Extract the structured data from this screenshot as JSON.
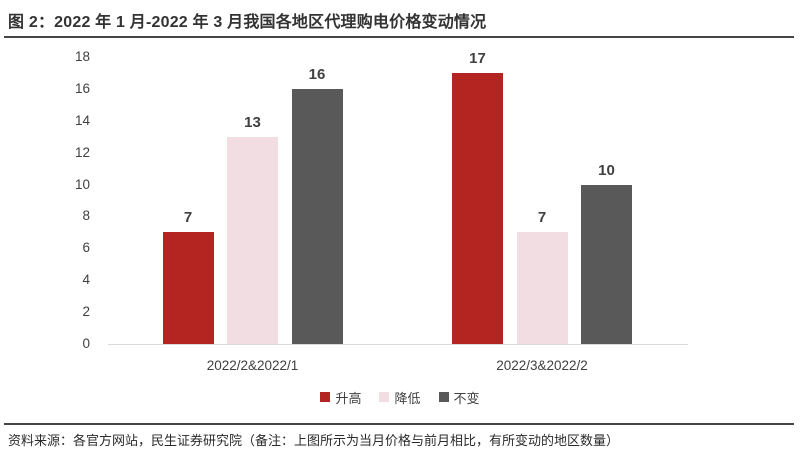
{
  "header": {
    "title": "图 2：2022 年 1 月-2022 年 3 月我国各地区代理购电价格变动情况"
  },
  "footer": {
    "source": "资料来源：各官方网站，民生证券研究院（备注：上图所示为当月价格与前月相比，有所变动的地区数量）"
  },
  "colors": {
    "increase": "#b42420",
    "decrease": "#f2dde2",
    "unchanged": "#595959",
    "axis": "#d9d9d9",
    "text": "#404040"
  },
  "chart_data": {
    "type": "bar",
    "title": "",
    "xlabel": "",
    "ylabel": "",
    "categories": [
      "2022/2&2022/1",
      "2022/3&2022/2"
    ],
    "series": [
      {
        "key": "increase",
        "name": "升高",
        "color": "#b42420",
        "values": [
          7,
          17
        ]
      },
      {
        "key": "decrease",
        "name": "降低",
        "color": "#f2dde2",
        "values": [
          13,
          7
        ]
      },
      {
        "key": "unchanged",
        "name": "不变",
        "color": "#595959",
        "values": [
          16,
          10
        ]
      }
    ],
    "ylim": [
      0,
      18
    ],
    "ytick_step": 2,
    "grid": false,
    "legend_position": "bottom",
    "data_labels": true
  }
}
